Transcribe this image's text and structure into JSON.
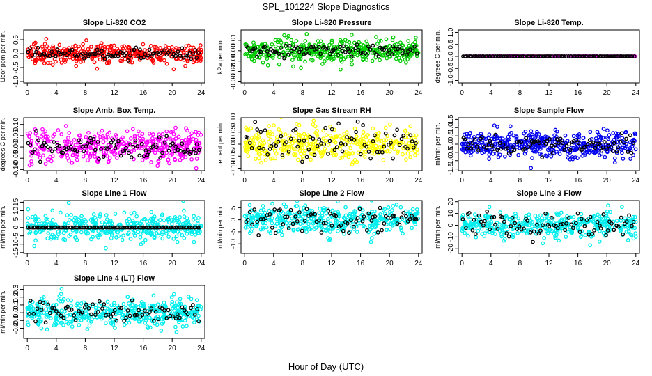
{
  "figure": {
    "title": "SPL_101224  Slope Diagnostics",
    "xlabel": "Hour of Day (UTC)"
  },
  "chart_data": [
    {
      "type": "scatter",
      "title": "Slope Li-820 CO2",
      "ylabel": "Licor ppm per min.",
      "color": "#ff0000",
      "xlim": [
        -0.5,
        24.5
      ],
      "xticks": [
        0,
        4,
        8,
        12,
        16,
        20,
        24
      ],
      "ylim": [
        -1.05,
        0.85
      ],
      "yticks": [
        -1.0,
        -0.5,
        0.0,
        0.5
      ],
      "yticklabels": [
        "-1.0",
        "-0.5",
        "0.0",
        "0.5"
      ],
      "spread": 0.16,
      "blackSpread": 0.09,
      "n": 380,
      "nb": 90,
      "flat": false
    },
    {
      "type": "scatter",
      "title": "Slope Li-820 Pressure",
      "ylabel": "kPa per min.",
      "color": "#00cc00",
      "xlim": [
        -0.5,
        24.5
      ],
      "xticks": [
        0,
        4,
        8,
        12,
        16,
        20,
        24
      ],
      "ylim": [
        -0.031,
        0.02
      ],
      "yticks": [
        -0.03,
        -0.02,
        -0.01,
        0.0,
        0.01
      ],
      "yticklabels": [
        "-0.03",
        "-0.02",
        "-0.01",
        "0.00",
        "0.01"
      ],
      "spread": 0.006,
      "blackSpread": 0.003,
      "n": 400,
      "nb": 90,
      "flat": false
    },
    {
      "type": "scatter",
      "title": "Slope Li-820 Temp.",
      "ylabel": "degrees C per min.",
      "color": "#ff00ff",
      "xlim": [
        -0.5,
        24.5
      ],
      "xticks": [
        0,
        4,
        8,
        12,
        16,
        20,
        24
      ],
      "ylim": [
        -1.1,
        1.1
      ],
      "yticks": [
        -1.0,
        -0.5,
        0.0,
        0.5,
        1.0
      ],
      "yticklabels": [
        "-1.0",
        "-0.5",
        "0.0",
        "0.5",
        "1.0"
      ],
      "spread": 0,
      "blackSpread": 0,
      "n": 130,
      "nb": 100,
      "flat": true
    },
    {
      "type": "scatter",
      "title": "Slope Amb. Box Temp.",
      "ylabel": "degrees C per min.",
      "color": "#ff00ff",
      "xlim": [
        -0.5,
        24.5
      ],
      "xticks": [
        0,
        4,
        8,
        12,
        16,
        20,
        24
      ],
      "ylim": [
        -0.105,
        0.13
      ],
      "yticks": [
        -0.1,
        -0.05,
        0.0,
        0.05,
        0.1
      ],
      "yticklabels": [
        "-0.10",
        "-0.05",
        "0.00",
        "0.05",
        "0.10"
      ],
      "spread": 0.035,
      "blackSpread": 0.022,
      "n": 420,
      "nb": 90,
      "flat": false
    },
    {
      "type": "scatter",
      "title": "Slope Gas Stream RH",
      "ylabel": "percent per min.",
      "color": "#ffff00",
      "xlim": [
        -0.5,
        24.5
      ],
      "xticks": [
        0,
        4,
        8,
        12,
        16,
        20,
        24
      ],
      "ylim": [
        -0.11,
        0.11
      ],
      "yticks": [
        -0.1,
        -0.05,
        0.0,
        0.05,
        0.1
      ],
      "yticklabels": [
        "-0.10",
        "-0.05",
        "0.00",
        "0.05",
        "0.10"
      ],
      "spread": 0.035,
      "blackSpread": 0.035,
      "n": 380,
      "nb": 80,
      "flat": false
    },
    {
      "type": "scatter",
      "title": "Slope Sample Flow",
      "ylabel": "ml/min per min.",
      "color": "#0000ee",
      "xlim": [
        -0.5,
        24.5
      ],
      "xticks": [
        0,
        4,
        8,
        12,
        16,
        20,
        24
      ],
      "ylim": [
        -1.6,
        1.6
      ],
      "yticks": [
        -1.5,
        -1.0,
        -0.5,
        0.0,
        0.5,
        1.0,
        1.5
      ],
      "yticklabels": [
        "-1.5",
        "-1.0",
        "-0.5",
        "0.0",
        "0.5",
        "1.0",
        "1.5"
      ],
      "spread": 0.4,
      "blackSpread": 0.3,
      "n": 420,
      "nb": 90,
      "flat": false
    },
    {
      "type": "scatter",
      "title": "Slope Line 1 Flow",
      "ylabel": "ml/min per min.",
      "color": "#00eeee",
      "xlim": [
        -0.5,
        24.5
      ],
      "xticks": [
        0,
        4,
        8,
        12,
        16,
        20,
        24
      ],
      "ylim": [
        -15.5,
        16
      ],
      "yticks": [
        -15,
        -10,
        -5,
        0,
        5,
        10,
        15
      ],
      "yticklabels": [
        "-15",
        "-10",
        "-5",
        "0",
        "5",
        "10",
        "15"
      ],
      "spread": 4.0,
      "blackSpread": 0,
      "n": 380,
      "nb": 100,
      "flat": false
    },
    {
      "type": "scatter",
      "title": "Slope Line 2 Flow",
      "ylabel": "ml/min per min.",
      "color": "#00eeee",
      "xlim": [
        -0.5,
        24.5
      ],
      "xticks": [
        0,
        4,
        8,
        12,
        16,
        20,
        24
      ],
      "ylim": [
        -14,
        8
      ],
      "yticks": [
        -10,
        -5,
        0,
        5
      ],
      "yticklabels": [
        "-10",
        "-5",
        "0",
        "5"
      ],
      "spread": 2.8,
      "blackSpread": 2.8,
      "n": 400,
      "nb": 80,
      "flat": false
    },
    {
      "type": "scatter",
      "title": "Slope Line 3 Flow",
      "ylabel": "ml/min per min.",
      "color": "#00eeee",
      "xlim": [
        -0.5,
        24.5
      ],
      "xticks": [
        0,
        4,
        8,
        12,
        16,
        20,
        24
      ],
      "ylim": [
        -24,
        21
      ],
      "yticks": [
        -20,
        -10,
        0,
        10,
        20
      ],
      "yticklabels": [
        "-20",
        "-10",
        "0",
        "10",
        "20"
      ],
      "spread": 5.5,
      "blackSpread": 5.5,
      "n": 400,
      "nb": 80,
      "flat": false
    },
    {
      "type": "scatter",
      "title": "Slope Line 4 (LT) Flow",
      "ylabel": "ml/min per min.",
      "color": "#00eeee",
      "xlim": [
        -0.5,
        24.5
      ],
      "xticks": [
        0,
        4,
        8,
        12,
        16,
        20,
        24
      ],
      "ylim": [
        -0.33,
        0.35
      ],
      "yticks": [
        -0.2,
        -0.1,
        0.0,
        0.1,
        0.2,
        0.3
      ],
      "yticklabels": [
        "-0.2",
        "-0.1",
        "0.0",
        "0.1",
        "0.2",
        "0.3"
      ],
      "spread": 0.09,
      "blackSpread": 0.07,
      "n": 420,
      "nb": 80,
      "flat": false
    }
  ]
}
